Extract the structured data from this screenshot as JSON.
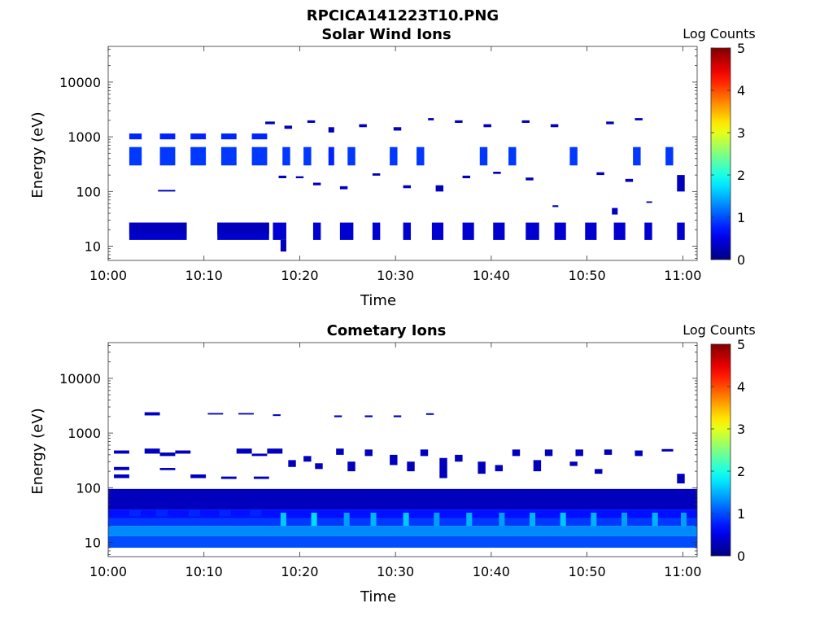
{
  "figure": {
    "title": "RPCICA141223T10.PNG"
  },
  "chart_data": [
    {
      "type": "heatmap",
      "title": "Solar Wind Ions",
      "xlabel": "Time",
      "ylabel": "Energy (eV)",
      "x_ticks": [
        "10:00",
        "10:10",
        "10:20",
        "10:30",
        "10:40",
        "10:50",
        "11:00"
      ],
      "x_range_minutes": [
        0,
        61.5
      ],
      "y_scale": "log",
      "y_range": [
        5.5,
        45000
      ],
      "y_ticks": [
        10,
        100,
        1000,
        10000
      ],
      "y_tick_labels": [
        "10",
        "100",
        "1000",
        "10000"
      ],
      "colorbar": {
        "label": "Log Counts",
        "range": [
          0,
          5
        ],
        "ticks": [
          "0",
          "1",
          "2",
          "3",
          "4",
          "5"
        ],
        "colormap": "jet"
      },
      "cells": [
        [
          2.2,
          8.2,
          13,
          27,
          0.4
        ],
        [
          2.2,
          8.2,
          16.5,
          27,
          0.3
        ],
        [
          11.4,
          16.8,
          13,
          27,
          0.4
        ],
        [
          11.4,
          16.8,
          16.5,
          27,
          0.3
        ],
        [
          2.2,
          3.5,
          300,
          650,
          0.9
        ],
        [
          5.4,
          7,
          300,
          650,
          0.9
        ],
        [
          8.6,
          10.2,
          300,
          650,
          0.9
        ],
        [
          11.8,
          13.4,
          300,
          650,
          0.9
        ],
        [
          15,
          16.6,
          300,
          650,
          0.9
        ],
        [
          18.2,
          19,
          300,
          650,
          0.9
        ],
        [
          20.4,
          21.2,
          300,
          650,
          0.9
        ],
        [
          23,
          23.6,
          300,
          650,
          0.8
        ],
        [
          25,
          25.8,
          300,
          650,
          0.9
        ],
        [
          29.4,
          30.2,
          300,
          650,
          0.9
        ],
        [
          32.2,
          33,
          300,
          650,
          0.9
        ],
        [
          38.8,
          39.6,
          300,
          650,
          0.9
        ],
        [
          41.8,
          42.6,
          300,
          650,
          0.9
        ],
        [
          48.2,
          49,
          300,
          650,
          0.9
        ],
        [
          54.8,
          55.6,
          300,
          650,
          0.9
        ],
        [
          58.2,
          59,
          300,
          650,
          0.9
        ],
        [
          2.2,
          3.5,
          900,
          1150,
          0.8
        ],
        [
          5.4,
          7,
          900,
          1150,
          0.8
        ],
        [
          8.6,
          10.2,
          900,
          1150,
          0.8
        ],
        [
          11.8,
          13.4,
          900,
          1150,
          0.8
        ],
        [
          15,
          16.6,
          900,
          1150,
          0.8
        ],
        [
          16.4,
          17.4,
          1700,
          1900,
          0.3
        ],
        [
          18.4,
          19.2,
          1400,
          1600,
          0.3
        ],
        [
          20.8,
          21.6,
          1800,
          2000,
          0.3
        ],
        [
          23,
          23.6,
          1200,
          1500,
          0.3
        ],
        [
          26.2,
          27,
          1500,
          1700,
          0.3
        ],
        [
          29.8,
          30.6,
          1300,
          1500,
          0.3
        ],
        [
          33.4,
          34,
          2000,
          2200,
          0.3
        ],
        [
          36.2,
          37,
          1800,
          2000,
          0.3
        ],
        [
          39.2,
          40,
          1500,
          1700,
          0.3
        ],
        [
          43.2,
          44,
          1800,
          2000,
          0.3
        ],
        [
          46.2,
          47,
          1500,
          1700,
          0.3
        ],
        [
          52,
          52.8,
          1700,
          1900,
          0.3
        ],
        [
          55,
          55.8,
          2000,
          2200,
          0.3
        ],
        [
          17.8,
          18.6,
          175,
          195,
          0.3
        ],
        [
          19.6,
          20.4,
          175,
          190,
          0.3
        ],
        [
          21.4,
          22.2,
          130,
          145,
          0.3
        ],
        [
          24.2,
          25,
          110,
          125,
          0.3
        ],
        [
          27.6,
          28.4,
          195,
          215,
          0.3
        ],
        [
          30.8,
          31.6,
          115,
          130,
          0.3
        ],
        [
          34.2,
          35,
          100,
          130,
          0.3
        ],
        [
          37,
          37.8,
          175,
          195,
          0.3
        ],
        [
          40.2,
          41,
          210,
          230,
          0.3
        ],
        [
          43.6,
          44.4,
          160,
          180,
          0.3
        ],
        [
          51,
          51.8,
          200,
          225,
          0.3
        ],
        [
          54,
          54.8,
          150,
          170,
          0.3
        ],
        [
          59.4,
          60.2,
          100,
          200,
          0.3
        ],
        [
          5.2,
          7,
          100,
          107,
          0.3
        ],
        [
          17.2,
          18.6,
          13,
          27,
          0.4
        ],
        [
          21.4,
          22.2,
          13,
          27,
          0.4
        ],
        [
          24.2,
          25.6,
          13,
          27,
          0.4
        ],
        [
          27.6,
          28.4,
          13,
          27,
          0.4
        ],
        [
          30.8,
          31.6,
          13,
          27,
          0.4
        ],
        [
          33.8,
          35,
          13,
          27,
          0.4
        ],
        [
          37,
          38.2,
          13,
          27,
          0.4
        ],
        [
          40.2,
          41.4,
          13,
          27,
          0.4
        ],
        [
          43.6,
          45,
          13,
          27,
          0.4
        ],
        [
          46.6,
          47.8,
          13,
          27,
          0.4
        ],
        [
          49.8,
          51,
          13,
          27,
          0.4
        ],
        [
          52.8,
          54,
          13,
          27,
          0.4
        ],
        [
          56,
          56.8,
          13,
          27,
          0.4
        ],
        [
          59.4,
          60.2,
          13,
          27,
          0.4
        ],
        [
          18,
          18.6,
          8,
          13,
          0.3
        ],
        [
          52.6,
          53.2,
          38,
          50,
          0.3
        ],
        [
          46.4,
          47,
          52,
          56,
          0.3
        ],
        [
          56.2,
          56.8,
          62,
          66,
          0.3
        ]
      ]
    },
    {
      "type": "heatmap",
      "title": "Cometary Ions",
      "xlabel": "Time",
      "ylabel": "Energy (eV)",
      "x_ticks": [
        "10:00",
        "10:10",
        "10:20",
        "10:30",
        "10:40",
        "10:50",
        "11:00"
      ],
      "x_range_minutes": [
        0,
        61.5
      ],
      "y_scale": "log",
      "y_range": [
        5.5,
        45000
      ],
      "y_ticks": [
        10,
        100,
        1000,
        10000
      ],
      "y_tick_labels": [
        "10",
        "100",
        "1000",
        "10000"
      ],
      "colorbar": {
        "label": "Log Counts",
        "range": [
          0,
          5
        ],
        "ticks": [
          "0",
          "1",
          "2",
          "3",
          "4",
          "5"
        ],
        "colormap": "jet"
      },
      "cells": [
        [
          0,
          61.5,
          40,
          95,
          0.3
        ],
        [
          0,
          61.5,
          28,
          40,
          0.7
        ],
        [
          0,
          61.5,
          20,
          28,
          0.9
        ],
        [
          0,
          61.5,
          13,
          20,
          1.3
        ],
        [
          0,
          61.5,
          8,
          13,
          1.0
        ],
        [
          2.2,
          3.4,
          30,
          40,
          0.8
        ],
        [
          5,
          6.2,
          30,
          40,
          0.8
        ],
        [
          8.4,
          9.6,
          30,
          40,
          0.8
        ],
        [
          11.6,
          12.8,
          30,
          40,
          0.8
        ],
        [
          14.8,
          16,
          30,
          40,
          0.8
        ],
        [
          18,
          18.6,
          20,
          35,
          1.6
        ],
        [
          21.2,
          21.8,
          20,
          35,
          1.7
        ],
        [
          24.6,
          25.2,
          20,
          35,
          1.4
        ],
        [
          27.4,
          28,
          20,
          35,
          1.5
        ],
        [
          30.8,
          31.4,
          20,
          35,
          1.6
        ],
        [
          34,
          34.6,
          20,
          35,
          1.4
        ],
        [
          37.4,
          38,
          20,
          35,
          1.5
        ],
        [
          40.8,
          41.4,
          20,
          35,
          1.4
        ],
        [
          44,
          44.6,
          20,
          35,
          1.5
        ],
        [
          47.2,
          47.8,
          20,
          35,
          1.6
        ],
        [
          50.4,
          51,
          20,
          35,
          1.5
        ],
        [
          53.6,
          54.2,
          20,
          35,
          1.4
        ],
        [
          56.8,
          57.4,
          20,
          35,
          1.5
        ],
        [
          59.8,
          60.4,
          20,
          35,
          1.4
        ],
        [
          0.6,
          2.2,
          420,
          480,
          0.3
        ],
        [
          0.6,
          2.2,
          210,
          240,
          0.3
        ],
        [
          0.6,
          2.2,
          150,
          175,
          0.3
        ],
        [
          3.8,
          5.4,
          420,
          520,
          0.3
        ],
        [
          5.4,
          7,
          380,
          440,
          0.3
        ],
        [
          7,
          8.6,
          420,
          480,
          0.3
        ],
        [
          5.4,
          7,
          210,
          230,
          0.3
        ],
        [
          8.6,
          10.2,
          150,
          175,
          0.3
        ],
        [
          11.8,
          13.4,
          145,
          160,
          0.3
        ],
        [
          13.4,
          15,
          420,
          520,
          0.3
        ],
        [
          15,
          16.6,
          380,
          420,
          0.3
        ],
        [
          15.2,
          16.8,
          145,
          160,
          0.3
        ],
        [
          16.6,
          18.2,
          420,
          520,
          0.3
        ],
        [
          18.8,
          19.6,
          240,
          320,
          0.3
        ],
        [
          20.4,
          21.2,
          300,
          380,
          0.3
        ],
        [
          21.6,
          22.4,
          220,
          280,
          0.3
        ],
        [
          23.8,
          24.6,
          400,
          520,
          0.3
        ],
        [
          25,
          25.8,
          200,
          300,
          0.3
        ],
        [
          26.8,
          27.6,
          380,
          500,
          0.3
        ],
        [
          29.4,
          30.2,
          260,
          400,
          0.3
        ],
        [
          31.2,
          32,
          200,
          300,
          0.3
        ],
        [
          32.6,
          33.4,
          380,
          500,
          0.3
        ],
        [
          34.6,
          35.4,
          150,
          350,
          0.3
        ],
        [
          36.2,
          37,
          300,
          400,
          0.3
        ],
        [
          38.6,
          39.4,
          180,
          300,
          0.3
        ],
        [
          40.4,
          41.2,
          200,
          260,
          0.3
        ],
        [
          42.2,
          43,
          380,
          500,
          0.3
        ],
        [
          44.4,
          45.2,
          200,
          320,
          0.3
        ],
        [
          45.6,
          46.4,
          380,
          500,
          0.3
        ],
        [
          48.2,
          49,
          250,
          300,
          0.3
        ],
        [
          48.8,
          49.6,
          380,
          500,
          0.3
        ],
        [
          50.8,
          51.6,
          180,
          220,
          0.3
        ],
        [
          51.8,
          52.6,
          400,
          500,
          0.3
        ],
        [
          55,
          55.8,
          380,
          480,
          0.3
        ],
        [
          57.8,
          59,
          460,
          510,
          0.3
        ],
        [
          59.4,
          60.2,
          120,
          180,
          0.3
        ],
        [
          3.8,
          5.4,
          2100,
          2400,
          0.3
        ],
        [
          10.4,
          12,
          2180,
          2320,
          0.3
        ],
        [
          13.6,
          15.2,
          2180,
          2320,
          0.3
        ],
        [
          17.2,
          18,
          2050,
          2200,
          0.3
        ],
        [
          23.6,
          24.4,
          1950,
          2100,
          0.3
        ],
        [
          26.8,
          27.6,
          1950,
          2100,
          0.3
        ],
        [
          29.8,
          30.6,
          1950,
          2100,
          0.3
        ],
        [
          33.2,
          34,
          2150,
          2300,
          0.3
        ]
      ]
    }
  ]
}
